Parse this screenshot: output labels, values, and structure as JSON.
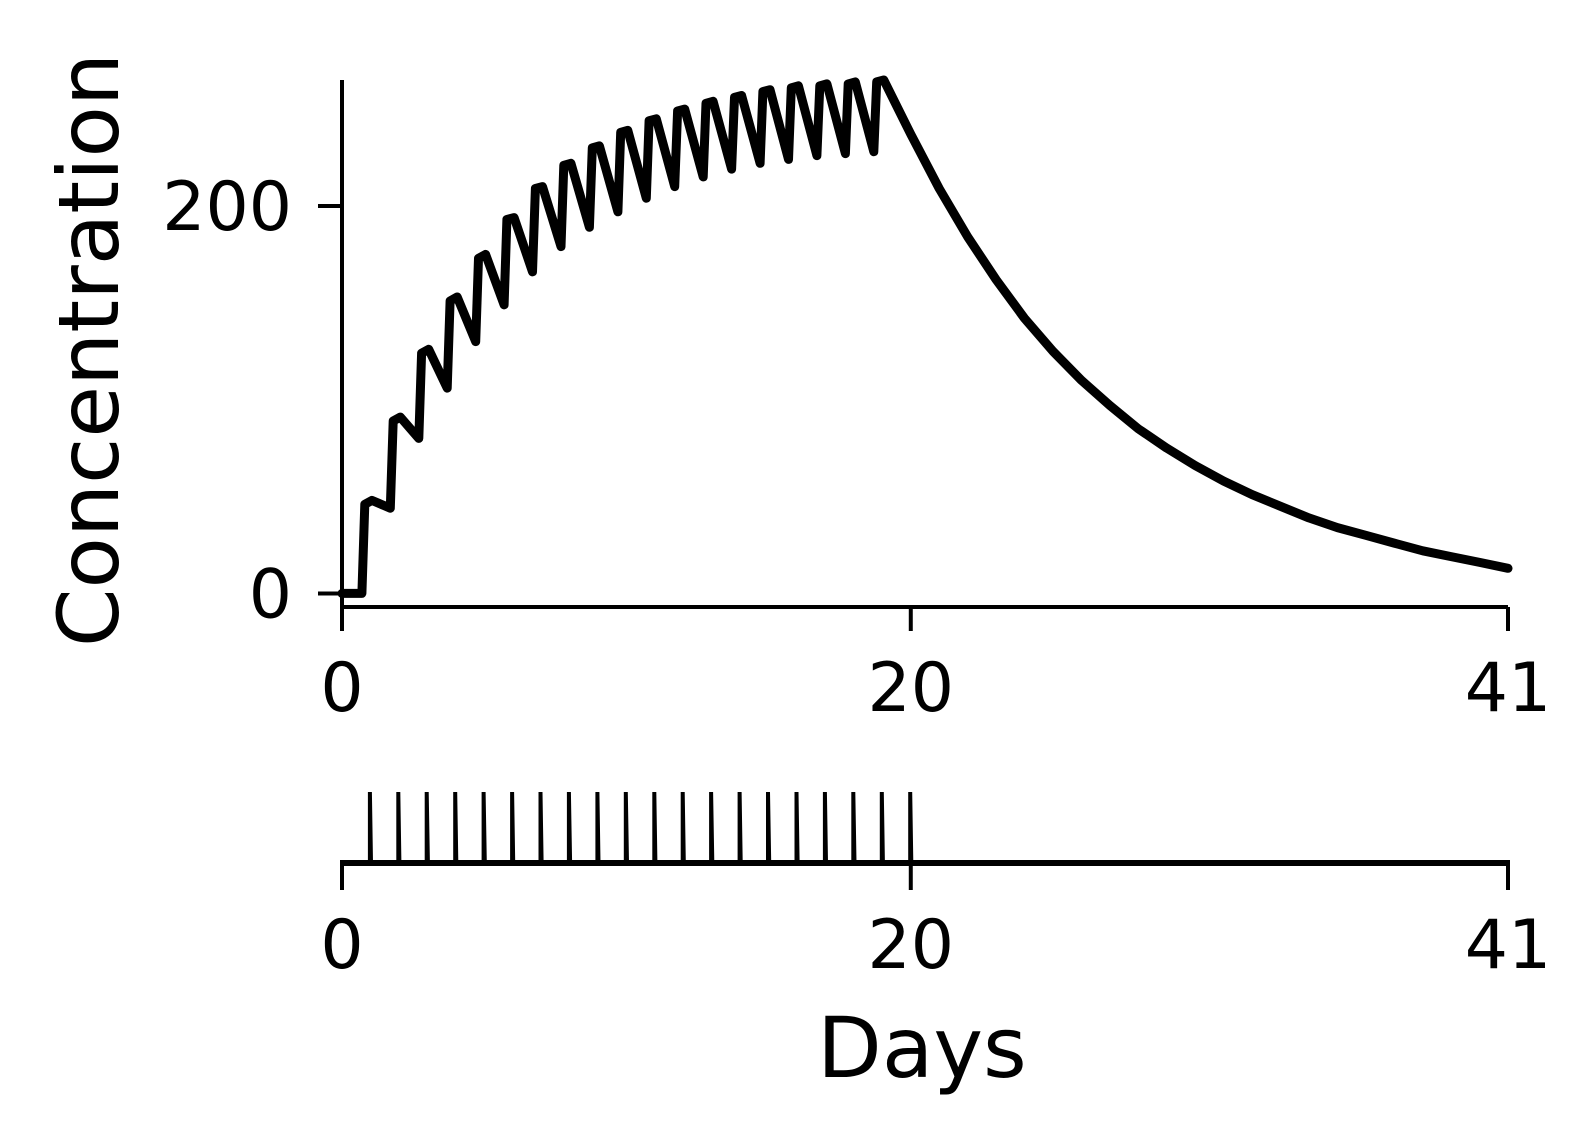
{
  "chart_data": [
    {
      "type": "line",
      "panel": "concentration",
      "ylabel": "Concentration",
      "xlim": [
        0,
        41
      ],
      "x_ticks": [
        0,
        20,
        41
      ],
      "ylim": [
        -7,
        265
      ],
      "y_ticks": [
        0,
        200
      ],
      "series": [
        {
          "points": [
            [
              0,
              0
            ],
            [
              0.7,
              0
            ],
            [
              0.8,
              46
            ],
            [
              1.05,
              48
            ],
            [
              1.7,
              44
            ],
            [
              1.8,
              89
            ],
            [
              2.05,
              91
            ],
            [
              2.7,
              80
            ],
            [
              2.8,
              124
            ],
            [
              3.05,
              126
            ],
            [
              3.7,
              106
            ],
            [
              3.8,
              151
            ],
            [
              4.05,
              153
            ],
            [
              4.7,
              130
            ],
            [
              4.8,
              173
            ],
            [
              5.05,
              175
            ],
            [
              5.7,
              149
            ],
            [
              5.8,
              193
            ],
            [
              6.05,
              194
            ],
            [
              6.7,
              166
            ],
            [
              6.8,
              209
            ],
            [
              7.05,
              210
            ],
            [
              7.7,
              179
            ],
            [
              7.8,
              221
            ],
            [
              8.05,
              222
            ],
            [
              8.7,
              189
            ],
            [
              8.8,
              230
            ],
            [
              9.05,
              231
            ],
            [
              9.7,
              197
            ],
            [
              9.8,
              238
            ],
            [
              10.05,
              239
            ],
            [
              10.7,
              204
            ],
            [
              10.8,
              244
            ],
            [
              11.05,
              245
            ],
            [
              11.7,
              210
            ],
            [
              11.8,
              249
            ],
            [
              12.05,
              250
            ],
            [
              12.7,
              215
            ],
            [
              12.8,
              253
            ],
            [
              13.05,
              254
            ],
            [
              13.7,
              219
            ],
            [
              13.8,
              256
            ],
            [
              14.05,
              257
            ],
            [
              14.7,
              222
            ],
            [
              14.8,
              259
            ],
            [
              15.05,
              260
            ],
            [
              15.7,
              224
            ],
            [
              15.8,
              261
            ],
            [
              16.05,
              262
            ],
            [
              16.7,
              226
            ],
            [
              16.8,
              262
            ],
            [
              17.05,
              263
            ],
            [
              17.7,
              227
            ],
            [
              17.8,
              263
            ],
            [
              18.05,
              264
            ],
            [
              18.7,
              228
            ],
            [
              18.8,
              264
            ],
            [
              19.05,
              265
            ],
            [
              20,
              237
            ],
            [
              21,
              209
            ],
            [
              22,
              184
            ],
            [
              23,
              162
            ],
            [
              24,
              142
            ],
            [
              25,
              125
            ],
            [
              26,
              110
            ],
            [
              27,
              97
            ],
            [
              28,
              85
            ],
            [
              29,
              75
            ],
            [
              30,
              66
            ],
            [
              31,
              58
            ],
            [
              32,
              51
            ],
            [
              33,
              45
            ],
            [
              34,
              39
            ],
            [
              35,
              34
            ],
            [
              36,
              30
            ],
            [
              37,
              26
            ],
            [
              38,
              22
            ],
            [
              39,
              19
            ],
            [
              40,
              16
            ],
            [
              41,
              13
            ]
          ]
        }
      ]
    },
    {
      "type": "line",
      "panel": "dosing",
      "xlabel": "Days",
      "xlim": [
        0,
        41
      ],
      "x_ticks": [
        0,
        20,
        41
      ],
      "dose_days": [
        1,
        2,
        3,
        4,
        5,
        6,
        7,
        8,
        9,
        10,
        11,
        12,
        13,
        14,
        15,
        16,
        17,
        18,
        19,
        20
      ],
      "dose_values": [
        1,
        1,
        1,
        1,
        1,
        1,
        1,
        1,
        1,
        1,
        1,
        1,
        1,
        1,
        1,
        1,
        1,
        1,
        1,
        1
      ],
      "ylim": [
        0,
        1
      ]
    }
  ],
  "colors": {
    "line": "#000000",
    "background": "#ffffff"
  }
}
